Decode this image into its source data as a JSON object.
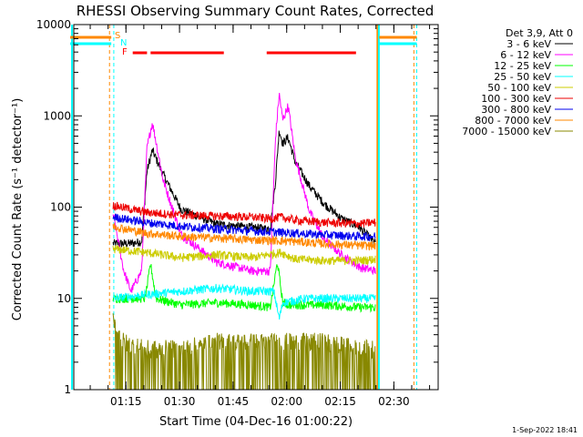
{
  "chart_data": {
    "type": "line",
    "title": "RHESSI Observing Summary Count Rates, Corrected",
    "xlabel": "Start Time (04-Dec-16 01:00:22)",
    "ylabel": "Corrected Count Rate (s⁻¹ detector⁻¹)",
    "y_scale": "log",
    "ylim": [
      1,
      10000
    ],
    "y_ticks": [
      1,
      10,
      100,
      1000,
      10000
    ],
    "y_tick_labels": [
      "1",
      "10",
      "100",
      "1000",
      "10000"
    ],
    "x_unit": "minutes since 01:00:22",
    "xlim": [
      0,
      102
    ],
    "x_ticks": [
      14.6,
      29.6,
      44.6,
      59.6,
      74.6,
      89.6
    ],
    "x_tick_labels": [
      "01:15",
      "01:30",
      "01:45",
      "02:00",
      "02:15",
      "02:30"
    ],
    "grid": false,
    "legend_position": "top-right",
    "legend_header": "Det 3,9, Att 0",
    "series": [
      {
        "name": "3 - 6 keV",
        "color": "#000000",
        "x": [
          11.0,
          16.0,
          19.0,
          20.5,
          22.0,
          25.0,
          30.0,
          40.0,
          50.0,
          55.0,
          56.5,
          57.5,
          58.5,
          60.0,
          62.0,
          66.0,
          70.0,
          75.0,
          80.0,
          84.5
        ],
        "y": [
          40,
          40,
          42,
          250,
          420,
          230,
          95,
          65,
          60,
          58,
          200,
          700,
          500,
          580,
          310,
          170,
          110,
          75,
          60,
          40
        ]
      },
      {
        "name": "6 - 12 keV",
        "color": "#ff00ff",
        "x": [
          11.0,
          14.0,
          16.0,
          19.0,
          20.5,
          22.0,
          25.0,
          30.0,
          40.0,
          50.0,
          55.0,
          56.5,
          57.5,
          58.5,
          60.0,
          62.0,
          66.0,
          70.0,
          75.0,
          80.0,
          84.5
        ],
        "y": [
          85,
          20,
          12,
          20,
          450,
          850,
          200,
          50,
          25,
          20,
          20,
          600,
          1750,
          900,
          1300,
          350,
          90,
          45,
          30,
          22,
          20
        ]
      },
      {
        "name": "12 - 25 keV",
        "color": "#00ff00",
        "x": [
          11.0,
          20.0,
          21.5,
          23.0,
          30.0,
          40.0,
          50.0,
          55.0,
          57.0,
          58.5,
          60.0,
          70.0,
          80.0,
          84.5
        ],
        "y": [
          10,
          10,
          24,
          10,
          8.5,
          9,
          8.5,
          8,
          25,
          9,
          8.5,
          8.5,
          8,
          8
        ]
      },
      {
        "name": "25 - 50 keV",
        "color": "#00ffff",
        "x": [
          11.0,
          20.0,
          30.0,
          40.0,
          50.0,
          56.0,
          57.5,
          58.5,
          65.0,
          70.0,
          80.0,
          84.5
        ],
        "y": [
          10,
          11,
          12,
          13,
          12,
          12,
          6,
          9,
          10,
          10,
          10,
          10
        ]
      },
      {
        "name": "50 - 100 keV",
        "color": "#cccc00",
        "x": [
          11.0,
          20.0,
          30.0,
          40.0,
          50.0,
          58.0,
          62.0,
          70.0,
          80.0,
          84.5
        ],
        "y": [
          35,
          32,
          28,
          30,
          28,
          32,
          27,
          26,
          26,
          27
        ]
      },
      {
        "name": "100 - 300 keV",
        "color": "#ee0000",
        "x": [
          11.0,
          20.0,
          30.0,
          40.0,
          50.0,
          55.0,
          58.0,
          62.0,
          70.0,
          80.0,
          84.5
        ],
        "y": [
          105,
          88,
          82,
          80,
          78,
          75,
          78,
          72,
          68,
          66,
          68
        ]
      },
      {
        "name": "300 - 800 keV",
        "color": "#0000ee",
        "x": [
          11.0,
          20.0,
          30.0,
          40.0,
          50.0,
          58.0,
          62.0,
          70.0,
          80.0,
          84.5
        ],
        "y": [
          78,
          68,
          62,
          58,
          55,
          53,
          52,
          50,
          48,
          48
        ]
      },
      {
        "name": "800 - 7000 keV",
        "color": "#ff8800",
        "x": [
          11.0,
          20.0,
          30.0,
          40.0,
          50.0,
          58.0,
          62.0,
          70.0,
          80.0,
          84.5
        ],
        "y": [
          62,
          52,
          48,
          46,
          44,
          43,
          42,
          40,
          38,
          38
        ]
      },
      {
        "name": "7000 - 15000 keV",
        "color": "#888800",
        "x": [
          11.0,
          14.0,
          20.0,
          30.0,
          40.0,
          50.0,
          60.0,
          70.0,
          80.0,
          84.5
        ],
        "y": [
          5,
          3,
          2.5,
          2.5,
          3,
          3,
          3,
          3,
          2.5,
          2.5
        ]
      }
    ],
    "flag_letters": [
      {
        "text": "S",
        "color": "#ff8800"
      },
      {
        "text": "N",
        "color": "#00ffff"
      },
      {
        "text": "F",
        "color": "#ff0000"
      }
    ],
    "attenuator_bars": [
      {
        "x0": -1,
        "x1": 10.5,
        "color": "#ff8800"
      },
      {
        "x0": 85.5,
        "x1": 96,
        "color": "#ff8800"
      }
    ],
    "night_bars": [
      {
        "x0": -1,
        "x1": 10.5,
        "color": "#00ffff"
      },
      {
        "x0": 85.5,
        "x1": 96,
        "color": "#00ffff"
      }
    ],
    "flare_bars": [
      {
        "x0": 16.5,
        "x1": 20.5,
        "color": "#ff0000"
      },
      {
        "x0": 21.5,
        "x1": 42,
        "color": "#ff0000"
      },
      {
        "x0": 54,
        "x1": 79,
        "color": "#ff0000"
      }
    ],
    "vlines": [
      {
        "x": -0.5,
        "color": "#00ffff",
        "style": "solid"
      },
      {
        "x": 10.0,
        "color": "#ff8800",
        "style": "dashed"
      },
      {
        "x": 11.2,
        "color": "#00ffff",
        "style": "dashed"
      },
      {
        "x": 85.0,
        "color": "#ff8800",
        "style": "solid"
      },
      {
        "x": 85.4,
        "color": "#00ffff",
        "style": "solid"
      },
      {
        "x": 95.2,
        "color": "#ff8800",
        "style": "dashed"
      },
      {
        "x": 96.0,
        "color": "#00ffff",
        "style": "dashed"
      }
    ]
  },
  "footer": {
    "date": "1-Sep-2022 18:41"
  }
}
